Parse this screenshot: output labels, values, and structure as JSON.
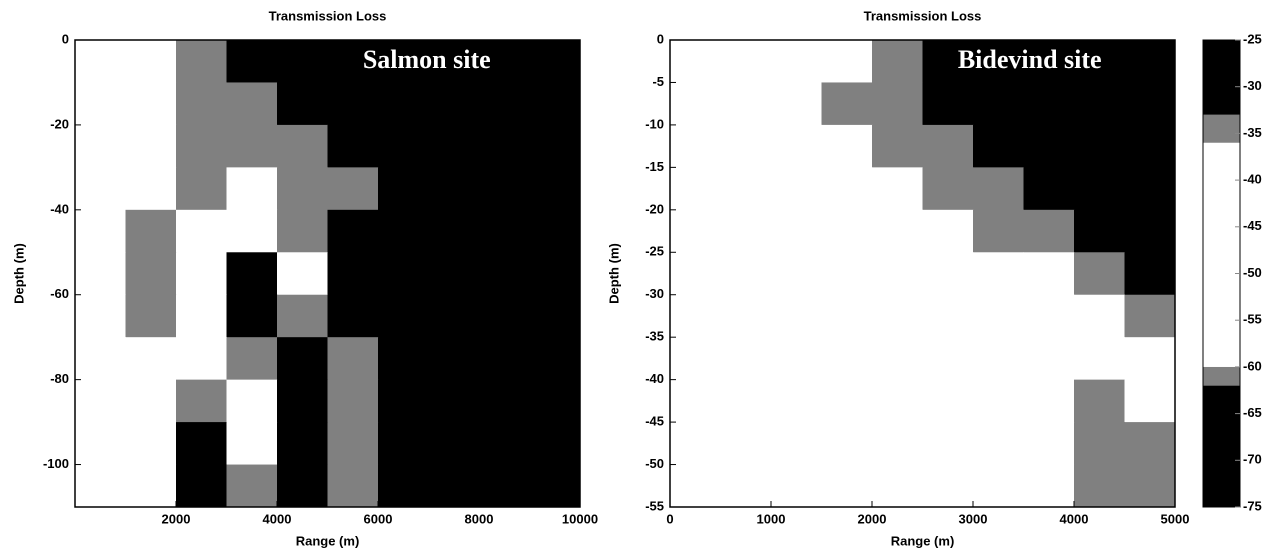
{
  "chart_data": [
    {
      "type": "heatmap",
      "title": "Transmission Loss",
      "annotation": "Salmon site",
      "x_label": "Range (m)",
      "y_label": "Depth (m)",
      "xlim": [
        0,
        10000
      ],
      "ylim": [
        -110,
        0
      ],
      "xticks": [
        2000,
        4000,
        6000,
        8000,
        10000
      ],
      "yticks": [
        0,
        -20,
        -40,
        -60,
        -80,
        -100
      ],
      "x": [
        500,
        1500,
        2500,
        3500,
        4500,
        5500,
        6500,
        7500,
        8500,
        9500
      ],
      "y": [
        -5,
        -15,
        -25,
        -35,
        -45,
        -55,
        -65,
        -75,
        -85,
        -95,
        -105
      ],
      "z": [
        [
          -50,
          -50,
          -61,
          -70,
          -70,
          -70,
          -70,
          -70,
          -70,
          -70
        ],
        [
          -50,
          -50,
          -61,
          -61,
          -70,
          -70,
          -70,
          -70,
          -70,
          -70
        ],
        [
          -50,
          -50,
          -61,
          -61,
          -61,
          -70,
          -70,
          -70,
          -70,
          -70
        ],
        [
          -50,
          -50,
          -61,
          -50,
          -61,
          -61,
          -70,
          -70,
          -70,
          -70
        ],
        [
          -50,
          -61,
          -50,
          -50,
          -61,
          -70,
          -70,
          -70,
          -70,
          -70
        ],
        [
          -50,
          -61,
          -50,
          -70,
          -50,
          -70,
          -70,
          -70,
          -70,
          -70
        ],
        [
          -50,
          -61,
          -50,
          -70,
          -61,
          -70,
          -70,
          -70,
          -70,
          -70
        ],
        [
          -50,
          -50,
          -50,
          -61,
          -70,
          -61,
          -70,
          -70,
          -70,
          -70
        ],
        [
          -50,
          -50,
          -61,
          -50,
          -70,
          -61,
          -70,
          -70,
          -70,
          -70
        ],
        [
          -50,
          -50,
          -70,
          -50,
          -70,
          -61,
          -70,
          -70,
          -70,
          -70
        ],
        [
          -50,
          -50,
          -70,
          -61,
          -70,
          -61,
          -70,
          -70,
          -70,
          -70
        ]
      ]
    },
    {
      "type": "heatmap",
      "title": "Transmission Loss",
      "annotation": "Bidevind site",
      "x_label": "Range (m)",
      "y_label": "Depth (m)",
      "xlim": [
        0,
        5000
      ],
      "ylim": [
        -55,
        0
      ],
      "xticks": [
        0,
        1000,
        2000,
        3000,
        4000,
        5000
      ],
      "yticks": [
        0,
        -5,
        -10,
        -15,
        -20,
        -25,
        -30,
        -35,
        -40,
        -45,
        -50,
        -55
      ],
      "x": [
        250,
        750,
        1250,
        1750,
        2250,
        2750,
        3250,
        3750,
        4250,
        4750
      ],
      "y": [
        -2.5,
        -7.5,
        -12.5,
        -17.5,
        -22.5,
        -27.5,
        -32.5,
        -37.5,
        -42.5,
        -47.5,
        -52.5
      ],
      "z": [
        [
          -50,
          -50,
          -50,
          -50,
          -61,
          -70,
          -70,
          -70,
          -70,
          -70
        ],
        [
          -50,
          -50,
          -50,
          -61,
          -61,
          -70,
          -70,
          -70,
          -70,
          -70
        ],
        [
          -50,
          -50,
          -50,
          -50,
          -61,
          -61,
          -70,
          -70,
          -70,
          -70
        ],
        [
          -50,
          -50,
          -50,
          -50,
          -50,
          -61,
          -61,
          -70,
          -70,
          -70
        ],
        [
          -50,
          -50,
          -50,
          -50,
          -50,
          -50,
          -61,
          -61,
          -70,
          -70
        ],
        [
          -50,
          -50,
          -50,
          -50,
          -50,
          -50,
          -50,
          -50,
          -61,
          -70
        ],
        [
          -50,
          -50,
          -50,
          -50,
          -50,
          -50,
          -50,
          -50,
          -50,
          -61
        ],
        [
          -50,
          -50,
          -50,
          -50,
          -50,
          -50,
          -50,
          -50,
          -50,
          -50
        ],
        [
          -50,
          -50,
          -50,
          -50,
          -50,
          -50,
          -50,
          -50,
          -61,
          -50
        ],
        [
          -50,
          -50,
          -50,
          -50,
          -50,
          -50,
          -50,
          -50,
          -61,
          -61
        ],
        [
          -50,
          -50,
          -50,
          -50,
          -50,
          -50,
          -50,
          -50,
          -61,
          -61
        ]
      ],
      "colorbar": {
        "zlim": [
          -75,
          -25
        ],
        "ticks": [
          -25,
          -30,
          -35,
          -40,
          -45,
          -50,
          -55,
          -60,
          -65,
          -70,
          -75
        ],
        "colormap": [
          {
            "from": -75,
            "to": -62,
            "color": "#000000"
          },
          {
            "from": -62,
            "to": -60,
            "color": "#808080"
          },
          {
            "from": -60,
            "to": -36,
            "color": "#ffffff"
          },
          {
            "from": -36,
            "to": -33,
            "color": "#808080"
          },
          {
            "from": -33,
            "to": -25,
            "color": "#000000"
          }
        ]
      }
    }
  ]
}
